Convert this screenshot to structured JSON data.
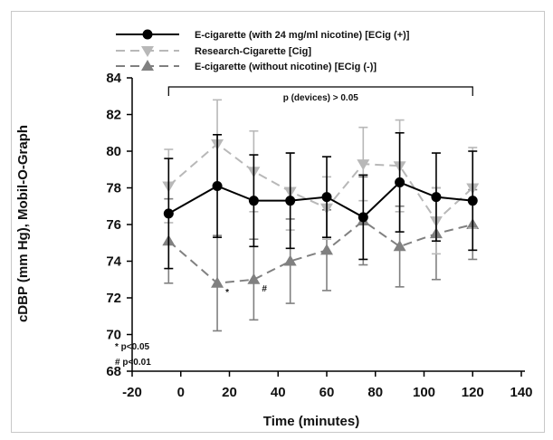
{
  "chart_data": {
    "type": "line",
    "xlabel": "Time (minutes)",
    "ylabel": "cDBP (mm Hg), Mobil-O-Graph",
    "xlim": [
      -20,
      140
    ],
    "ylim": [
      68,
      84
    ],
    "x_ticks": [
      "-20",
      "0",
      "20",
      "40",
      "60",
      "80",
      "100",
      "120",
      "140"
    ],
    "y_ticks": [
      "68",
      "70",
      "72",
      "74",
      "76",
      "78",
      "80",
      "82",
      "84"
    ],
    "legend_position": "top-left",
    "series": [
      {
        "name": "E-cigarette (with 24 mg/ml nicotine) [ECig (+)]",
        "color": "#000000",
        "marker": "circle",
        "line_style": "solid",
        "x": [
          -5,
          15,
          30,
          45,
          60,
          75,
          90,
          105,
          120
        ],
        "y": [
          76.6,
          78.1,
          77.3,
          77.3,
          77.5,
          76.4,
          78.3,
          77.5,
          77.3
        ],
        "err": [
          3.0,
          2.8,
          2.5,
          2.6,
          2.2,
          2.3,
          2.7,
          2.4,
          2.7
        ]
      },
      {
        "name": "Research-Cigarette [Cig]",
        "color": "#b8b8b8",
        "marker": "triangle-down",
        "line_style": "dashed",
        "x": [
          -5,
          15,
          30,
          45,
          60,
          75,
          90,
          105,
          120
        ],
        "y": [
          78.1,
          80.4,
          78.9,
          77.8,
          76.9,
          79.3,
          79.2,
          76.2,
          78.0
        ],
        "err": [
          2.0,
          2.4,
          2.2,
          2.1,
          1.7,
          2.0,
          2.5,
          1.8,
          2.2
        ]
      },
      {
        "name": "E-cigarette (without nicotine) [ECig (-)]",
        "color": "#808080",
        "marker": "triangle-up",
        "line_style": "dashed",
        "x": [
          -5,
          15,
          30,
          45,
          60,
          75,
          90,
          105,
          120
        ],
        "y": [
          75.1,
          72.8,
          73.0,
          74.0,
          74.6,
          76.2,
          74.8,
          75.5,
          76.0
        ],
        "err": [
          2.3,
          2.6,
          2.2,
          2.3,
          2.2,
          2.4,
          2.2,
          2.5,
          1.9
        ]
      }
    ],
    "annotations": {
      "bracket_label": "p (devices) > 0.05",
      "markers": [
        {
          "symbol": "*",
          "x": 15,
          "series": 2
        },
        {
          "symbol": "#",
          "x": 30,
          "series": 2
        }
      ],
      "footnotes": [
        "* p<0.05",
        "# p<0.01"
      ]
    }
  }
}
